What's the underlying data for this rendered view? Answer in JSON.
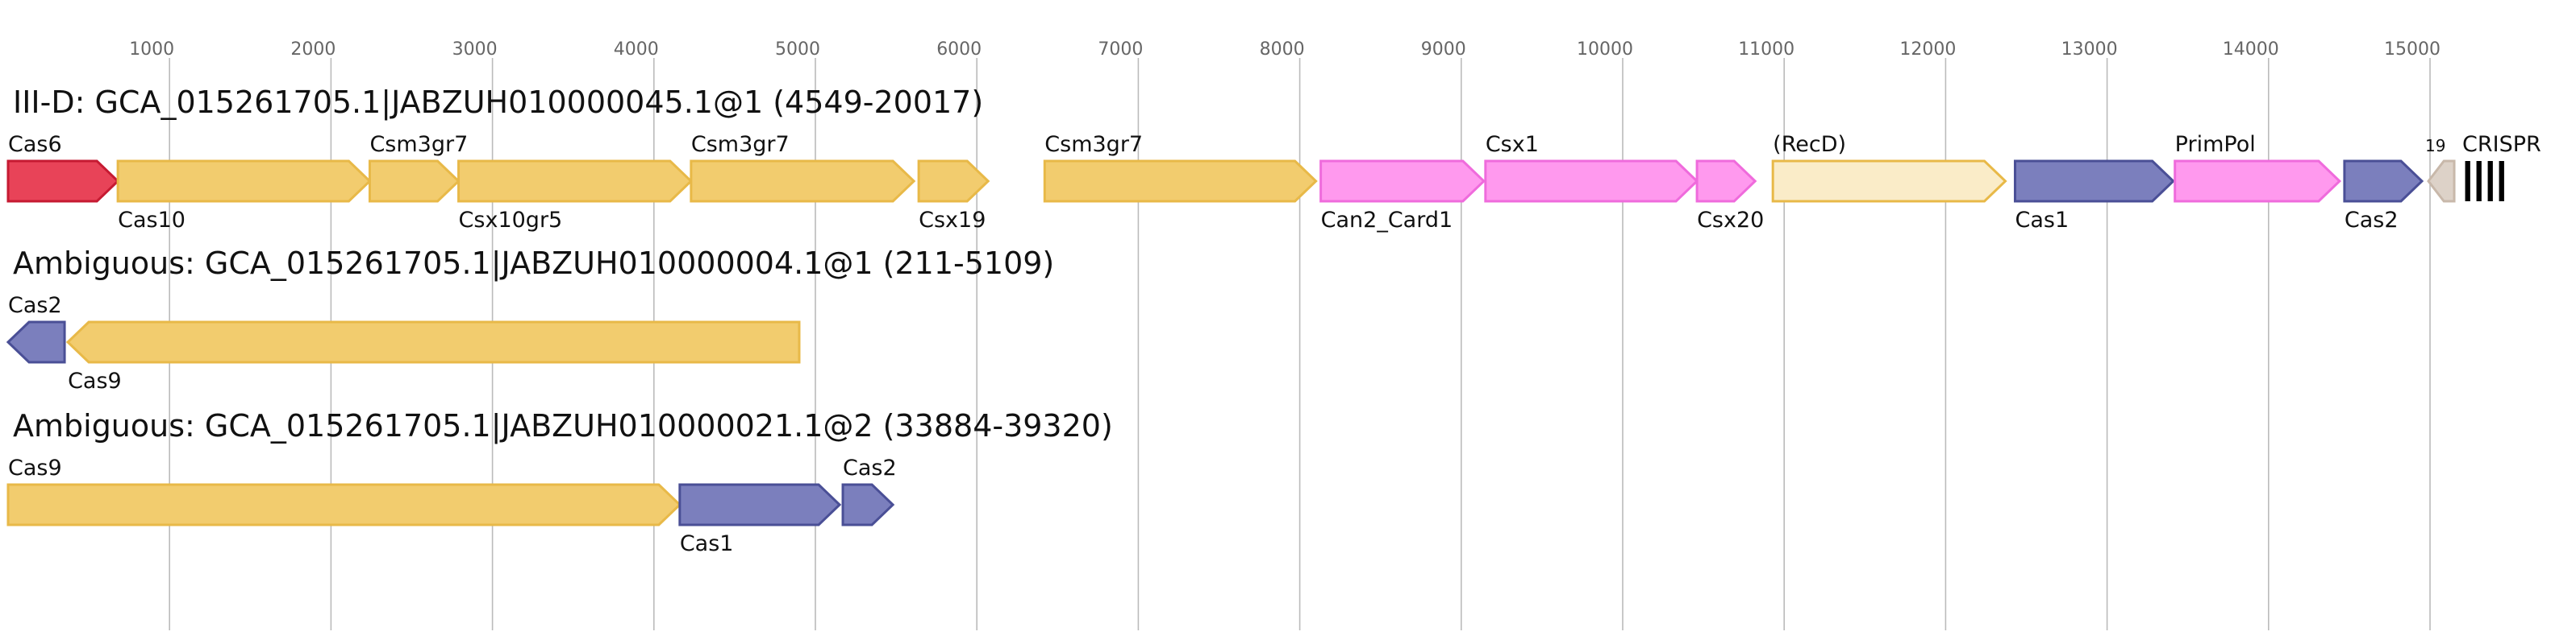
{
  "colors": {
    "grid": "#bbbbbb",
    "yellow_fill": "#f2cc6e",
    "yellow_stroke": "#e8b948",
    "pink_fill": "#ff99ee",
    "pink_stroke": "#ef6bdc",
    "red_fill": "#e84358",
    "red_stroke": "#c61a32",
    "blue_fill": "#7b7fbd",
    "blue_stroke": "#4a4f96",
    "pale_fill": "#faecc8",
    "pale_stroke": "#e8b948",
    "grey_fill": "#ddd2c8",
    "grey_stroke": "#c8b8aa",
    "crispr": "#000000"
  },
  "axis": {
    "ticks": [
      1000,
      2000,
      3000,
      4000,
      5000,
      6000,
      7000,
      8000,
      9000,
      10000,
      11000,
      12000,
      13000,
      14000,
      15000
    ]
  },
  "tracks": [
    {
      "title": "III-D: GCA_015261705.1|JABZUH010000045.1@1 (4549-20017)",
      "genes": [
        {
          "label": "Cas6",
          "start": 0,
          "end": 680,
          "strand": 1,
          "color": "red",
          "label_pos": "above"
        },
        {
          "label": "Cas10",
          "start": 680,
          "end": 2240,
          "strand": 1,
          "color": "yellow",
          "label_pos": "below"
        },
        {
          "label": "Csm3gr7",
          "start": 2240,
          "end": 2790,
          "strand": 1,
          "color": "yellow",
          "label_pos": "above"
        },
        {
          "label": "Csx10gr5",
          "start": 2790,
          "end": 4230,
          "strand": 1,
          "color": "yellow",
          "label_pos": "below"
        },
        {
          "label": "Csm3gr7",
          "start": 4230,
          "end": 5610,
          "strand": 1,
          "color": "yellow",
          "label_pos": "above"
        },
        {
          "label": "Csx19",
          "start": 5640,
          "end": 6070,
          "strand": 1,
          "color": "yellow",
          "label_pos": "below"
        },
        {
          "label": "Csm3gr7",
          "start": 6420,
          "end": 8100,
          "strand": 1,
          "color": "yellow",
          "label_pos": "above"
        },
        {
          "label": "Can2_Card1",
          "start": 8130,
          "end": 9140,
          "strand": 1,
          "color": "pink",
          "label_pos": "below"
        },
        {
          "label": "Csx1",
          "start": 9150,
          "end": 10460,
          "strand": 1,
          "color": "pink",
          "label_pos": "above"
        },
        {
          "label": "Csx20",
          "start": 10460,
          "end": 10820,
          "strand": 1,
          "color": "pink",
          "label_pos": "below"
        },
        {
          "label": "(RecD)",
          "start": 10930,
          "end": 12370,
          "strand": 1,
          "color": "pale",
          "label_pos": "above"
        },
        {
          "label": "Cas1",
          "start": 12430,
          "end": 13410,
          "strand": 1,
          "color": "blue",
          "label_pos": "below"
        },
        {
          "label": "PrimPol",
          "start": 13420,
          "end": 14440,
          "strand": 1,
          "color": "pink",
          "label_pos": "above"
        },
        {
          "label": "Cas2",
          "start": 14470,
          "end": 14950,
          "strand": 1,
          "color": "blue",
          "label_pos": "below"
        },
        {
          "label": "19",
          "start": 14990,
          "end": 15150,
          "strand": -1,
          "color": "grey",
          "label_pos": "above-small"
        }
      ],
      "crispr": {
        "label": "CRISPR",
        "start": 15200,
        "end": 15480,
        "bars": 4
      }
    },
    {
      "title": "Ambiguous: GCA_015261705.1|JABZUH010000004.1@1 (211-5109)",
      "genes": [
        {
          "label": "Cas2",
          "start": 0,
          "end": 350,
          "strand": -1,
          "color": "blue",
          "label_pos": "above"
        },
        {
          "label": "Cas9",
          "start": 370,
          "end": 4900,
          "strand": -1,
          "color": "yellow",
          "label_pos": "below"
        }
      ]
    },
    {
      "title": "Ambiguous: GCA_015261705.1|JABZUH010000021.1@2 (33884-39320)",
      "genes": [
        {
          "label": "Cas9",
          "start": 0,
          "end": 4160,
          "strand": 1,
          "color": "yellow",
          "label_pos": "above"
        },
        {
          "label": "Cas1",
          "start": 4160,
          "end": 5150,
          "strand": 1,
          "color": "blue",
          "label_pos": "below"
        },
        {
          "label": "Cas2",
          "start": 5170,
          "end": 5480,
          "strand": 1,
          "color": "blue",
          "label_pos": "above"
        }
      ]
    }
  ]
}
